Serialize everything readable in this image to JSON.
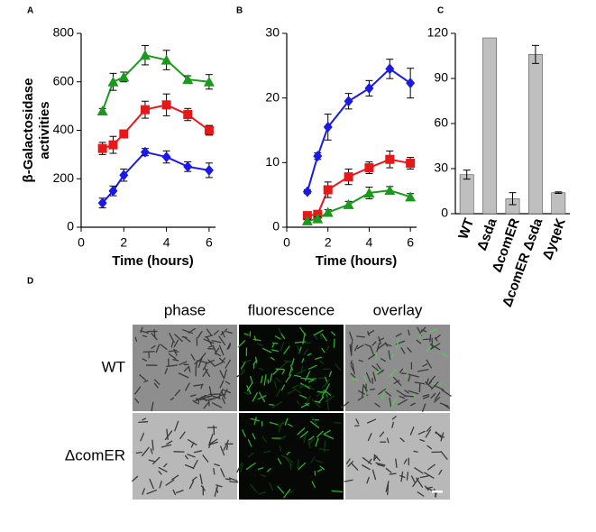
{
  "chart_data": [
    {
      "type": "line",
      "panel": "A",
      "xlabel": "Time (hours)",
      "ylabel": [
        "β-Galactosidase",
        "activities"
      ],
      "xlim": [
        0,
        6.3
      ],
      "xticks": [
        0,
        2,
        4,
        6
      ],
      "ylim": [
        0,
        800
      ],
      "yticks": [
        0,
        200,
        400,
        600,
        800
      ],
      "x": [
        1,
        1.5,
        2,
        3,
        4,
        5,
        6
      ],
      "series": [
        {
          "color": "#1a9a1a",
          "marker": "triangle",
          "values": [
            480,
            600,
            620,
            710,
            690,
            610,
            600
          ],
          "errors": [
            10,
            35,
            20,
            40,
            40,
            15,
            30
          ]
        },
        {
          "color": "#e8181a",
          "marker": "square",
          "values": [
            325,
            340,
            385,
            485,
            505,
            465,
            400
          ],
          "errors": [
            25,
            35,
            15,
            35,
            45,
            25,
            20
          ]
        },
        {
          "color": "#1a1ae8",
          "marker": "diamond",
          "values": [
            100,
            150,
            215,
            310,
            290,
            250,
            235
          ],
          "errors": [
            20,
            20,
            25,
            15,
            25,
            20,
            30
          ]
        }
      ]
    },
    {
      "type": "line",
      "panel": "B",
      "xlabel": "Time (hours)",
      "xlim": [
        0,
        6.3
      ],
      "xticks": [
        0,
        2,
        4,
        6
      ],
      "ylim": [
        0,
        30
      ],
      "yticks": [
        0,
        10,
        20,
        30
      ],
      "x": [
        1,
        1.5,
        2,
        3,
        4,
        5,
        6
      ],
      "series": [
        {
          "color": "#1a1ae8",
          "marker": "diamond",
          "values": [
            5.5,
            11,
            15.5,
            19.5,
            21.5,
            24.5,
            22.3
          ],
          "errors": [
            0.3,
            0.5,
            2,
            1.2,
            1.2,
            1.5,
            2.3
          ]
        },
        {
          "color": "#e8181a",
          "marker": "square",
          "values": [
            1.8,
            2,
            5.8,
            7.8,
            9.2,
            10.5,
            9.9
          ],
          "errors": [
            0.3,
            0.5,
            1.2,
            1.2,
            0.9,
            1.3,
            0.9
          ]
        },
        {
          "color": "#1a9a1a",
          "marker": "triangle",
          "values": [
            1,
            1.3,
            2.3,
            3.5,
            5.3,
            5.7,
            4.7
          ],
          "errors": [
            0.2,
            0.3,
            0.4,
            0.5,
            0.9,
            0.6,
            0.5
          ]
        }
      ]
    },
    {
      "type": "bar",
      "panel": "C",
      "color": "#bfbfbf",
      "categories": [
        "WT",
        "Δsda",
        "ΔcomER",
        "ΔcomER Δsda",
        "ΔyqeK"
      ],
      "values": [
        26,
        117,
        10,
        106,
        14
      ],
      "errors": [
        3,
        0,
        4,
        6,
        0.5
      ],
      "ylim": [
        0,
        120
      ],
      "yticks": [
        0,
        30,
        60,
        90,
        120
      ]
    }
  ],
  "panel_d": {
    "panel_label": "D",
    "columns": [
      "phase",
      "fluorescence",
      "overlay"
    ],
    "rows": [
      "WT",
      "ΔcomER"
    ]
  }
}
